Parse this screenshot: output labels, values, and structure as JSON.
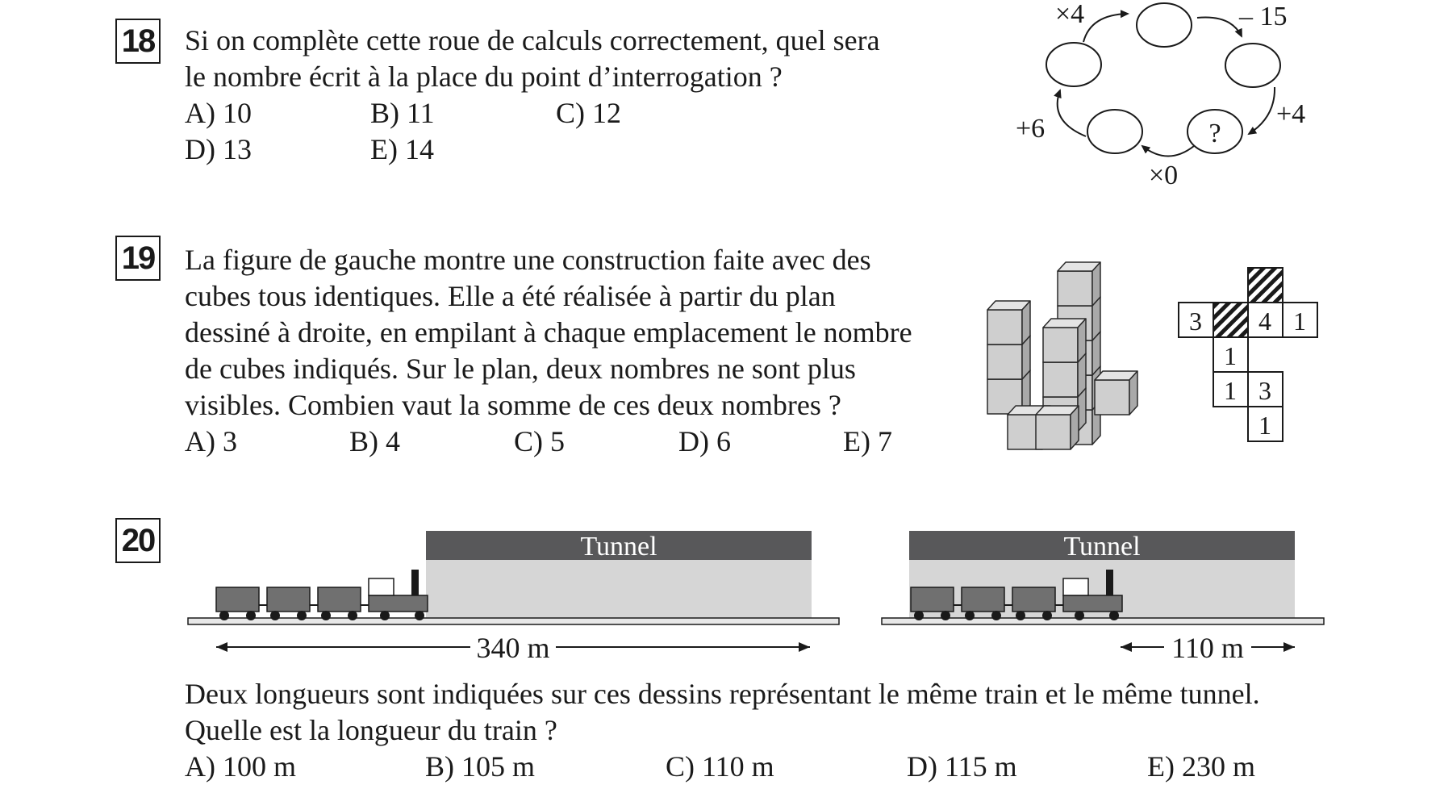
{
  "q18": {
    "number": "18",
    "lines": [
      "Si on complète cette roue de calculs correctement, quel sera",
      "le nombre écrit à la place du point d’interrogation ?"
    ],
    "answers": [
      "A) 10",
      "B) 11",
      "C) 12",
      "D) 13",
      "E) 14"
    ],
    "wheel": {
      "op_top": "×4",
      "op_top_right": "– 15",
      "op_right": "+4",
      "op_bottom": "×0",
      "op_left": "+6",
      "unknown": "?"
    }
  },
  "q19": {
    "number": "19",
    "lines": [
      "La figure de gauche montre une construction faite avec des",
      "cubes tous identiques. Elle a été réalisée à partir du plan",
      "dessiné à droite, en empilant à chaque emplacement le nombre",
      "de cubes indiqués. Sur le plan, deux nombres ne sont plus",
      "visibles. Combien vaut la somme de ces deux nombres ?"
    ],
    "answers": [
      "A) 3",
      "B) 4",
      "C) 5",
      "D) 6",
      "E) 7"
    ],
    "plan": {
      "c1": "3",
      "c2": "4",
      "c3": "1",
      "c4": "1",
      "c5": "1",
      "c6": "3",
      "c7": "1"
    }
  },
  "q20": {
    "number": "20",
    "tunnel_label": "Tunnel",
    "length_left": "340 m",
    "length_right": "110 m",
    "lines": [
      "Deux longueurs sont indiquées sur ces dessins représentant le même train et le même tunnel.",
      "Quelle est la longueur du train ?"
    ],
    "answers": [
      "A) 100 m",
      "B) 105 m",
      "C) 110 m",
      "D) 115 m",
      "E) 230 m"
    ]
  },
  "colors": {
    "tunnel_band": "#58585a",
    "tunnel_body": "#d6d6d6",
    "train": "#707070",
    "cube": "#cfcfcf"
  }
}
